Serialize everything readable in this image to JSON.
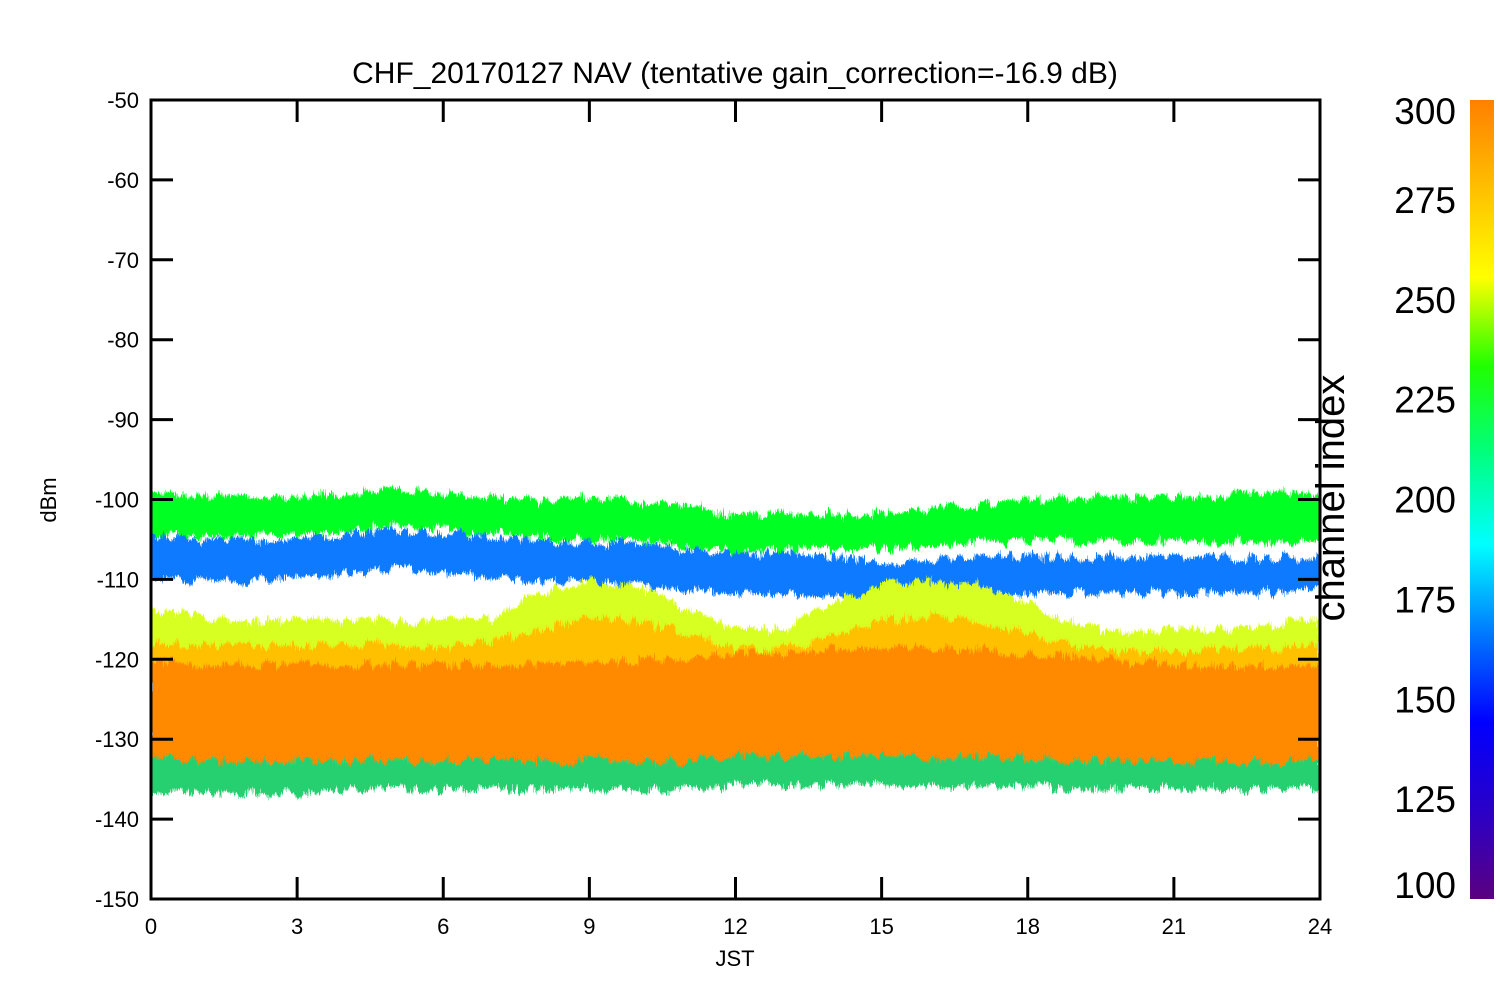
{
  "chart_data": {
    "type": "line",
    "title": "CHF_20170127 NAV (tentative gain_correction=-16.9 dB)",
    "xlabel": "JST",
    "ylabel": "dBm",
    "xlim": [
      0,
      24
    ],
    "ylim": [
      -150,
      -50
    ],
    "xticks": [
      "0",
      "3",
      "6",
      "9",
      "12",
      "15",
      "18",
      "21",
      "24"
    ],
    "yticks": [
      "-50",
      "-60",
      "-70",
      "-80",
      "-90",
      "-100",
      "-110",
      "-120",
      "-130",
      "-140",
      "-150"
    ],
    "grid": false,
    "colorbar": {
      "label": "channel index",
      "range": [
        100,
        300
      ],
      "ticks": [
        "300",
        "275",
        "250",
        "225",
        "200",
        "175",
        "150",
        "125",
        "100"
      ],
      "colors": [
        "#5a0080",
        "#2a00c8",
        "#0000ff",
        "#007aff",
        "#00ffff",
        "#00ff80",
        "#20ff00",
        "#ffff00",
        "#ffc000",
        "#ff8000"
      ]
    },
    "series": [
      {
        "color": "#00ff20",
        "x": [
          0,
          1,
          2,
          3,
          4,
          5,
          6,
          7,
          8,
          9,
          10,
          11,
          12,
          13,
          14,
          15,
          16,
          17,
          18,
          19,
          20,
          21,
          22,
          23,
          24
        ],
        "upper": [
          -99.5,
          -100,
          -100,
          -100,
          -99.5,
          -99,
          -99.5,
          -100,
          -100.5,
          -100,
          -100.5,
          -101,
          -102.5,
          -102,
          -102,
          -102,
          -101.5,
          -101,
          -100.5,
          -100,
          -100,
          -100,
          -100,
          -99.5,
          -99.5
        ],
        "lower": [
          -104,
          -104.5,
          -104.5,
          -104,
          -103.5,
          -103,
          -103.5,
          -104,
          -104.5,
          -104.5,
          -105,
          -105.5,
          -106.5,
          -106,
          -106,
          -106,
          -105.5,
          -105,
          -105,
          -105,
          -105,
          -105,
          -105,
          -105,
          -105
        ]
      },
      {
        "color": "#0a7aff",
        "x": [
          0,
          1,
          2,
          3,
          4,
          5,
          6,
          7,
          8,
          9,
          10,
          11,
          12,
          13,
          14,
          15,
          16,
          17,
          18,
          19,
          20,
          21,
          22,
          23,
          24
        ],
        "upper": [
          -105,
          -105.5,
          -105.5,
          -105,
          -104.5,
          -104,
          -104.5,
          -105,
          -105.5,
          -105.5,
          -106,
          -106.5,
          -107,
          -107,
          -107.5,
          -108,
          -108,
          -107.5,
          -107.5,
          -107.5,
          -107.5,
          -107.5,
          -107.5,
          -107.5,
          -107.5
        ],
        "lower": [
          -109.5,
          -110,
          -110,
          -109.5,
          -109,
          -108.5,
          -109,
          -109.5,
          -110,
          -110,
          -110.5,
          -111,
          -111.5,
          -111.5,
          -112,
          -112.5,
          -112.5,
          -112,
          -111.5,
          -111.5,
          -111.5,
          -111.5,
          -111.5,
          -111.5,
          -111
        ]
      },
      {
        "color": "#d8ff20",
        "x": [
          0,
          1,
          2,
          3,
          4,
          5,
          6,
          7,
          8,
          9,
          10,
          11,
          12,
          13,
          14,
          15,
          16,
          17,
          18,
          19,
          20,
          21,
          22,
          23,
          24
        ],
        "upper": [
          -114,
          -115,
          -115.5,
          -115.5,
          -115.5,
          -115.5,
          -115.5,
          -115,
          -112,
          -110.5,
          -111,
          -114,
          -116.5,
          -116.5,
          -113,
          -111,
          -110.5,
          -111,
          -113,
          -116,
          -117,
          -116.5,
          -116.5,
          -116,
          -115
        ],
        "lower": [
          -121,
          -121,
          -121,
          -121,
          -121,
          -121,
          -121,
          -121,
          -121,
          -121,
          -121,
          -121,
          -121,
          -121,
          -121,
          -121,
          -121,
          -121,
          -121,
          -121,
          -121,
          -121,
          -121,
          -121,
          -121
        ]
      },
      {
        "color": "#ffc000",
        "x": [
          0,
          1,
          2,
          3,
          4,
          5,
          6,
          7,
          8,
          9,
          10,
          11,
          12,
          13,
          14,
          15,
          16,
          17,
          18,
          19,
          20,
          21,
          22,
          23,
          24
        ],
        "upper": [
          -118,
          -118.5,
          -118.5,
          -118.5,
          -118.5,
          -118.5,
          -118.5,
          -118,
          -116.5,
          -115,
          -115.5,
          -117,
          -119,
          -119,
          -117.5,
          -115.5,
          -115,
          -115.5,
          -117,
          -119,
          -119.5,
          -119.5,
          -119,
          -119,
          -118.5
        ],
        "lower": [
          -124,
          -124,
          -124,
          -124,
          -124,
          -124,
          -124,
          -124,
          -124,
          -124,
          -124,
          -124,
          -124,
          -124,
          -124,
          -124,
          -124,
          -124,
          -124,
          -124,
          -124,
          -124,
          -124,
          -124,
          -124
        ]
      },
      {
        "color": "#ff8a00",
        "x": [
          0,
          1,
          2,
          3,
          4,
          5,
          6,
          7,
          8,
          9,
          10,
          11,
          12,
          13,
          14,
          15,
          16,
          17,
          18,
          19,
          20,
          21,
          22,
          23,
          24
        ],
        "upper": [
          -120.5,
          -121,
          -121,
          -121,
          -121,
          -121,
          -121,
          -121,
          -121,
          -120.5,
          -120.5,
          -120,
          -119.5,
          -119.5,
          -119,
          -119,
          -119,
          -119,
          -119.5,
          -120,
          -120.5,
          -121,
          -121,
          -121,
          -121
        ],
        "lower": [
          -133.5,
          -134,
          -134,
          -134,
          -134,
          -134,
          -134,
          -134,
          -134,
          -134,
          -134,
          -134,
          -133.5,
          -133.5,
          -133.5,
          -133.5,
          -133.5,
          -133.5,
          -133.5,
          -134,
          -134,
          -134,
          -134,
          -134,
          -134
        ]
      },
      {
        "color": "#28d070",
        "x": [
          0,
          1,
          2,
          3,
          4,
          5,
          6,
          7,
          8,
          9,
          10,
          11,
          12,
          13,
          14,
          15,
          16,
          17,
          18,
          19,
          20,
          21,
          22,
          23,
          24
        ],
        "upper": [
          -132.5,
          -133,
          -133,
          -133,
          -133,
          -133,
          -133,
          -133,
          -133,
          -133,
          -133,
          -133,
          -132.5,
          -132.5,
          -132.5,
          -132.5,
          -132.5,
          -132.5,
          -132.5,
          -133,
          -133,
          -133,
          -133,
          -133,
          -133
        ],
        "lower": [
          -136,
          -136.5,
          -136.5,
          -136.5,
          -136,
          -136,
          -136,
          -136,
          -136,
          -136,
          -136,
          -136,
          -135.5,
          -135.5,
          -135.5,
          -135.5,
          -135.5,
          -135.5,
          -135.5,
          -136,
          -136,
          -136,
          -136,
          -136,
          -136
        ]
      }
    ]
  }
}
